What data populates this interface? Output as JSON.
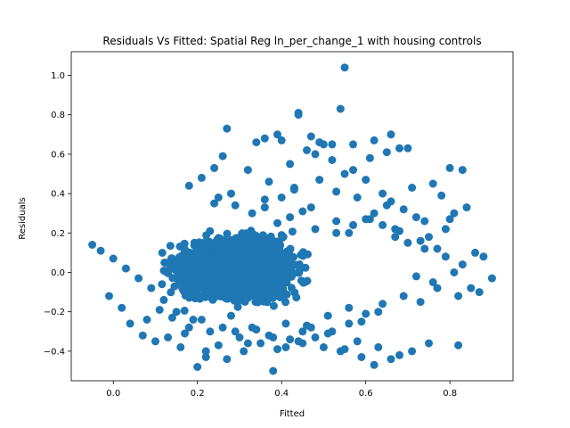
{
  "chart_data": {
    "type": "scatter",
    "title": "Residuals Vs Fitted: Spatial Reg ln_per_change_1 with housing controls",
    "xlabel": "Fitted",
    "ylabel": "Residuals",
    "xlim": [
      -0.1,
      0.95
    ],
    "ylim": [
      -0.55,
      1.12
    ],
    "x_ticks": [
      0.0,
      0.2,
      0.4,
      0.6,
      0.8
    ],
    "x_tick_labels": [
      "0.0",
      "0.2",
      "0.4",
      "0.6",
      "0.8"
    ],
    "y_ticks": [
      -0.4,
      -0.2,
      0.0,
      0.2,
      0.4,
      0.6,
      0.8,
      1.0
    ],
    "y_tick_labels": [
      "−0.4",
      "−0.2",
      "0.0",
      "0.2",
      "0.4",
      "0.6",
      "0.8",
      "1.0"
    ],
    "grid": false,
    "marker_color": "#1f77b4",
    "series": [
      {
        "x": [
          0.55,
          0.54,
          0.44,
          0.44,
          0.39,
          0.4,
          0.47,
          0.49,
          0.5,
          0.52,
          0.57,
          0.62,
          0.66,
          0.68,
          0.7,
          0.65,
          0.61,
          0.57,
          0.52,
          0.48,
          0.46,
          0.42,
          0.36,
          0.34,
          0.27,
          0.24,
          0.21,
          0.18,
          0.26,
          0.32,
          0.37,
          0.43,
          0.49,
          0.55,
          0.6,
          0.64,
          0.71,
          0.76,
          0.8,
          0.83,
          0.78,
          0.81,
          0.84,
          0.74,
          0.69,
          0.72,
          0.66,
          0.62,
          0.58,
          0.53,
          0.67,
          0.75,
          0.79,
          0.86,
          0.88,
          0.9,
          0.85,
          0.82,
          0.77,
          0.73,
          0.63,
          0.59,
          0.56,
          0.51,
          0.47,
          0.45,
          0.41,
          0.38,
          0.35,
          0.31,
          0.29,
          0.25,
          0.22,
          0.2,
          0.16,
          0.13,
          0.1,
          0.07,
          0.04,
          0.02,
          -0.01,
          -0.05,
          -0.03,
          0.0,
          0.03,
          0.06,
          0.09,
          0.12,
          0.15,
          0.19,
          0.23,
          0.28,
          0.33,
          0.39,
          0.42,
          0.38,
          0.32,
          0.27,
          0.22,
          0.18,
          0.14,
          0.11,
          0.08,
          0.43,
          0.4,
          0.36,
          0.28,
          0.24,
          0.53,
          0.57,
          0.61,
          0.65,
          0.67,
          0.7,
          0.74,
          0.79,
          0.81,
          0.83,
          0.87,
          0.76,
          0.72,
          0.69,
          0.64,
          0.6,
          0.56,
          0.52,
          0.48,
          0.45,
          0.5,
          0.54,
          0.58,
          0.63,
          0.68,
          0.71,
          0.75,
          0.82,
          0.66,
          0.62,
          0.59,
          0.55,
          0.51,
          0.46,
          0.44,
          0.41,
          0.37,
          0.34,
          0.3,
          0.26,
          0.21,
          0.17,
          0.25,
          0.29,
          0.33,
          0.36,
          0.39,
          0.42,
          0.45,
          0.48,
          0.47,
          0.53,
          0.56,
          0.6,
          0.64,
          0.68,
          0.73,
          0.77,
          0.8
        ],
        "y": [
          1.04,
          0.83,
          0.81,
          0.8,
          0.7,
          0.67,
          0.69,
          0.66,
          0.65,
          0.65,
          0.65,
          0.67,
          0.7,
          0.63,
          0.63,
          0.61,
          0.58,
          0.52,
          0.57,
          0.6,
          0.62,
          0.55,
          0.68,
          0.66,
          0.73,
          0.53,
          0.48,
          0.44,
          0.59,
          0.52,
          0.46,
          0.43,
          0.47,
          0.5,
          0.47,
          0.4,
          0.43,
          0.45,
          0.53,
          0.52,
          0.39,
          0.3,
          0.33,
          0.26,
          0.32,
          0.28,
          0.36,
          0.3,
          0.38,
          0.41,
          0.22,
          0.18,
          0.22,
          0.1,
          0.08,
          -0.03,
          -0.08,
          -0.12,
          -0.08,
          -0.15,
          -0.2,
          -0.25,
          -0.18,
          -0.22,
          -0.28,
          -0.3,
          -0.26,
          -0.33,
          -0.36,
          -0.4,
          -0.3,
          -0.37,
          -0.43,
          -0.48,
          -0.38,
          -0.33,
          -0.35,
          -0.32,
          -0.26,
          -0.18,
          -0.12,
          0.14,
          0.11,
          0.07,
          0.02,
          -0.03,
          -0.08,
          -0.14,
          -0.2,
          -0.24,
          -0.3,
          -0.22,
          -0.28,
          -0.39,
          -0.34,
          -0.5,
          -0.36,
          -0.44,
          -0.4,
          -0.28,
          -0.23,
          -0.19,
          -0.24,
          0.42,
          0.38,
          0.33,
          0.4,
          0.35,
          0.2,
          0.24,
          0.27,
          0.34,
          0.18,
          0.15,
          0.12,
          0.08,
          0.0,
          0.04,
          -0.1,
          -0.05,
          -0.02,
          -0.12,
          -0.16,
          -0.21,
          -0.26,
          -0.3,
          -0.33,
          -0.36,
          -0.38,
          -0.4,
          -0.35,
          -0.38,
          -0.42,
          -0.4,
          -0.36,
          -0.37,
          -0.44,
          -0.47,
          -0.43,
          -0.39,
          -0.31,
          -0.27,
          -0.35,
          -0.38,
          -0.32,
          -0.29,
          -0.33,
          -0.28,
          -0.24,
          -0.31,
          0.38,
          0.34,
          0.3,
          0.37,
          0.25,
          0.28,
          0.31,
          0.22,
          0.33,
          0.26,
          0.2,
          0.27,
          0.24,
          0.21,
          0.16,
          0.12,
          0.27
        ]
      }
    ],
    "dense_cluster": {
      "x_center": 0.29,
      "y_center": 0.02,
      "x_spread": 0.11,
      "y_spread": 0.12,
      "count": 2600
    }
  }
}
